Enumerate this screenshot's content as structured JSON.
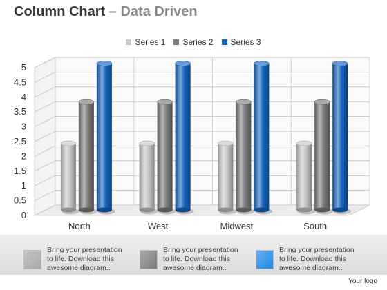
{
  "header": {
    "title_main": "Column Chart",
    "title_dash": "–",
    "title_sub": "Data Driven"
  },
  "chart_data": {
    "type": "bar",
    "categories": [
      "North",
      "West",
      "Midwest",
      "South"
    ],
    "series": [
      {
        "name": "Series 1",
        "values": [
          2.3,
          2.3,
          2.3,
          2.3
        ],
        "color": "#c9c9c9"
      },
      {
        "name": "Series 2",
        "values": [
          3.7,
          3.7,
          3.7,
          3.7
        ],
        "color": "#7d7d7d"
      },
      {
        "name": "Series 3",
        "values": [
          5,
          5,
          5,
          5
        ],
        "color": "#1565c0"
      }
    ],
    "ylim": [
      0,
      5
    ],
    "yticks": [
      "0",
      "0.5",
      "1",
      "1.5",
      "2",
      "2.5",
      "3",
      "3.5",
      "4",
      "4.5",
      "5"
    ],
    "grid": true,
    "legend_position": "top"
  },
  "footer": {
    "notes": [
      {
        "text": "Bring your presentation to life. Download this awesome diagram..",
        "color": "#a8a8a8"
      },
      {
        "text": "Bring your presentation to life. Download this awesome diagram..",
        "color": "#7d7d7d"
      },
      {
        "text": "Bring your presentation to life. Download this awesome diagram..",
        "color": "#1e88e5"
      }
    ],
    "logo": "Your logo"
  }
}
